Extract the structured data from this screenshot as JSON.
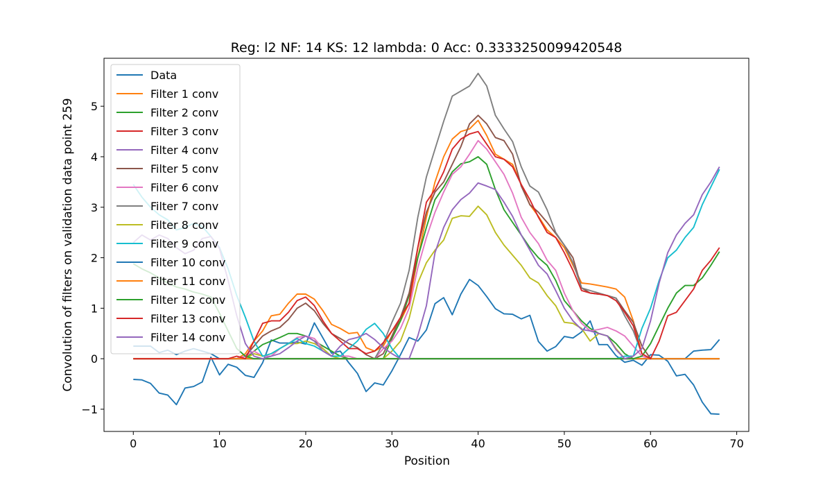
{
  "chart_data": {
    "type": "line",
    "title": "Reg: l2  NF: 14  KS: 12  lambda: 0 Acc: 0.3333250099420548",
    "xlabel": "Position",
    "ylabel": "Convolution of filters on validation data point 259",
    "xlim": [
      -3.4,
      71.4
    ],
    "ylim": [
      -1.44,
      5.95
    ],
    "xticks": [
      0,
      10,
      20,
      30,
      40,
      50,
      60,
      70
    ],
    "yticks": [
      -1,
      0,
      1,
      2,
      3,
      4,
      5
    ],
    "grid": false,
    "legend_position": "top-left",
    "series": [
      {
        "name": "Data",
        "color": "#1f77b4",
        "values": [
          -0.41,
          -0.42,
          -0.49,
          -0.68,
          -0.72,
          -0.91,
          -0.58,
          -0.55,
          -0.46,
          0.03,
          -0.32,
          -0.11,
          -0.17,
          -0.33,
          -0.37,
          -0.08,
          0.37,
          0.31,
          0.31,
          0.33,
          0.29,
          0.71,
          0.41,
          0.11,
          0.15,
          -0.08,
          -0.29,
          -0.65,
          -0.48,
          -0.52,
          -0.24,
          0.08,
          0.42,
          0.35,
          0.57,
          1.09,
          1.21,
          0.87,
          1.28,
          1.57,
          1.45,
          1.23,
          0.99,
          0.89,
          0.88,
          0.79,
          0.86,
          0.34,
          0.15,
          0.24,
          0.44,
          0.41,
          0.53,
          0.75,
          0.28,
          0.28,
          0.06,
          -0.07,
          -0.03,
          -0.13,
          0.08,
          0.07,
          -0.05,
          -0.34,
          -0.31,
          -0.52,
          -0.86,
          -1.09,
          -1.1
        ]
      },
      {
        "name": "Filter 1 conv",
        "color": "#ff7f0e",
        "values": [
          0,
          0,
          0,
          0,
          0,
          0,
          0,
          0,
          0,
          0,
          0,
          0,
          0,
          0.1,
          0.35,
          0.55,
          0.85,
          0.88,
          1.1,
          1.28,
          1.28,
          1.18,
          0.95,
          0.68,
          0.6,
          0.5,
          0.52,
          0.22,
          0.15,
          0.25,
          0.55,
          0.75,
          1.1,
          2.0,
          2.8,
          3.5,
          4.0,
          4.35,
          4.5,
          4.55,
          4.72,
          4.42,
          4.05,
          3.95,
          3.85,
          3.45,
          3.05,
          2.82,
          2.55,
          2.4,
          2.2,
          1.85,
          1.5,
          1.48,
          1.45,
          1.42,
          1.38,
          1.22,
          0.75,
          0.1,
          0,
          0,
          0,
          0,
          0,
          0,
          0,
          0,
          0
        ]
      },
      {
        "name": "Filter 2 conv",
        "color": "#2ca02c",
        "values": [
          0,
          0,
          0,
          0,
          0,
          0,
          0,
          0,
          0,
          0,
          0,
          0,
          0,
          0,
          0.15,
          0.28,
          0.35,
          0.42,
          0.5,
          0.5,
          0.45,
          0.35,
          0.25,
          0.15,
          0.05,
          0.0,
          0.0,
          0.0,
          0.0,
          0.0,
          0.4,
          0.75,
          1.25,
          2.0,
          2.6,
          3.15,
          3.4,
          3.7,
          3.86,
          3.9,
          4.0,
          3.85,
          3.35,
          2.95,
          2.7,
          2.45,
          2.2,
          2.0,
          1.85,
          1.55,
          1.15,
          0.95,
          0.75,
          0.6,
          0.5,
          0.45,
          0.3,
          0.1,
          0.0,
          0.0,
          0.0,
          0,
          0,
          0,
          0,
          0,
          0,
          0,
          0
        ]
      },
      {
        "name": "Filter 3 conv",
        "color": "#d62728",
        "values": [
          0,
          0,
          0,
          0,
          0,
          0,
          0,
          0,
          0,
          0,
          0,
          0,
          0,
          0,
          0,
          0,
          0,
          0,
          0,
          0,
          0,
          0,
          0,
          0,
          0,
          0,
          0,
          0,
          0,
          0,
          0,
          0,
          0,
          0,
          0,
          0,
          0,
          0,
          0,
          0,
          0,
          0,
          0,
          0,
          0,
          0,
          0,
          0,
          0,
          0,
          0,
          0,
          0,
          0,
          0,
          0,
          0,
          0,
          0,
          0,
          0,
          0,
          0,
          0,
          0,
          0,
          0,
          0,
          0
        ]
      },
      {
        "name": "Filter 4 conv",
        "color": "#9467bd",
        "values": [
          0,
          0,
          0,
          0,
          0,
          0,
          0,
          0,
          0,
          0,
          0,
          0,
          0,
          0,
          0,
          0,
          0,
          0,
          0,
          0,
          0,
          0,
          0,
          0,
          0,
          0,
          0,
          0,
          0,
          0,
          0,
          0,
          0,
          0,
          0,
          0,
          0,
          0,
          0,
          0,
          0,
          0,
          0,
          0,
          0,
          0,
          0,
          0,
          0,
          0,
          0,
          0,
          0,
          0,
          0,
          0,
          0,
          0,
          0,
          0,
          0,
          0,
          0,
          0,
          0,
          0,
          0,
          0,
          0
        ]
      },
      {
        "name": "Filter 5 conv",
        "color": "#8c564b",
        "values": [
          0,
          0,
          0,
          0,
          0,
          0,
          0,
          0,
          0,
          0,
          0,
          0,
          0,
          0.05,
          0.25,
          0.45,
          0.55,
          0.62,
          0.78,
          1.0,
          1.1,
          0.95,
          0.7,
          0.5,
          0.4,
          0.3,
          0.22,
          0.08,
          0.0,
          0.1,
          0.45,
          0.82,
          1.3,
          2.2,
          2.9,
          3.3,
          3.5,
          3.85,
          4.2,
          4.65,
          4.82,
          4.65,
          4.38,
          4.32,
          4.05,
          3.42,
          3.05,
          2.9,
          2.7,
          2.48,
          2.25,
          2.0,
          1.4,
          1.3,
          1.28,
          1.25,
          1.2,
          0.95,
          0.72,
          0.25,
          0.0,
          0,
          0,
          0,
          0,
          0,
          0,
          0,
          0
        ]
      },
      {
        "name": "Filter 6 conv",
        "color": "#e377c2",
        "values": [
          0,
          0,
          0,
          0,
          0,
          0,
          0,
          0,
          0,
          0,
          0,
          0,
          0,
          0.05,
          0.15,
          0.05,
          0.05,
          0.2,
          0.3,
          0.42,
          0.45,
          0.4,
          0.2,
          0.05,
          0.05,
          0.05,
          0.0,
          0.0,
          0.0,
          0.2,
          0.35,
          0.6,
          1.0,
          1.8,
          2.4,
          2.9,
          3.3,
          3.65,
          3.8,
          4.05,
          4.32,
          4.15,
          3.9,
          3.65,
          3.28,
          2.8,
          2.5,
          2.28,
          1.95,
          1.75,
          1.3,
          0.95,
          0.7,
          0.55,
          0.58,
          0.62,
          0.55,
          0.45,
          0.25,
          0.05,
          0.0,
          0,
          0,
          0,
          0,
          0,
          0,
          0,
          0
        ]
      },
      {
        "name": "Filter 7 conv",
        "color": "#7f7f7f",
        "values": [
          0,
          0,
          0,
          0,
          0,
          0,
          0,
          0,
          0,
          0,
          0,
          0,
          0,
          0,
          0,
          0,
          0,
          0,
          0,
          0,
          0,
          0,
          0,
          0,
          0,
          0,
          0,
          0,
          0,
          0.3,
          0.72,
          1.1,
          1.75,
          2.8,
          3.6,
          4.15,
          4.7,
          5.2,
          5.3,
          5.4,
          5.65,
          5.4,
          4.82,
          4.55,
          4.3,
          3.8,
          3.42,
          3.3,
          2.95,
          2.5,
          2.25,
          1.9,
          1.4,
          1.35,
          1.3,
          1.25,
          1.2,
          0.85,
          0.55,
          0.1,
          0.0,
          0,
          0,
          0,
          0,
          0,
          0,
          0,
          0
        ]
      },
      {
        "name": "Filter 8 conv",
        "color": "#bcbd22",
        "values": [
          0,
          0,
          0,
          0,
          0,
          0,
          0,
          0,
          0,
          0,
          0,
          0,
          0,
          0,
          0.1,
          0.05,
          0.1,
          0.2,
          0.3,
          0.3,
          0.35,
          0.3,
          0.2,
          0.05,
          0.0,
          0.0,
          0.0,
          0.0,
          0.0,
          0.0,
          0.15,
          0.35,
          0.8,
          1.5,
          1.9,
          2.15,
          2.35,
          2.78,
          2.83,
          2.82,
          3.02,
          2.85,
          2.5,
          2.25,
          2.05,
          1.85,
          1.6,
          1.5,
          1.25,
          1.05,
          0.72,
          0.7,
          0.6,
          0.35,
          0.5,
          0.45,
          0.2,
          0.0,
          0.0,
          0.0,
          0.0,
          0,
          0,
          0,
          0,
          0,
          0,
          0,
          0
        ]
      },
      {
        "name": "Filter 9 conv",
        "color": "#17becf",
        "values": [
          3.45,
          3.2,
          3.0,
          2.85,
          2.75,
          2.55,
          2.6,
          2.68,
          2.62,
          2.42,
          2.2,
          1.78,
          1.25,
          0.82,
          0.35,
          0.05,
          0.1,
          0.2,
          0.3,
          0.4,
          0.3,
          0.25,
          0.15,
          0.05,
          0.05,
          0.2,
          0.35,
          0.58,
          0.7,
          0.5,
          0.2,
          0.0,
          0.0,
          0.0,
          0.0,
          0.0,
          0,
          0,
          0,
          0,
          0,
          0,
          0,
          0,
          0,
          0,
          0,
          0,
          0,
          0,
          0,
          0,
          0,
          0,
          0,
          0,
          0,
          0.05,
          0.05,
          0.6,
          1.0,
          1.55,
          2.0,
          2.15,
          2.4,
          2.6,
          3.05,
          3.4,
          3.75
        ]
      },
      {
        "name": "Filter 10 conv",
        "color": "#1f77b4",
        "values": [
          0.25,
          0.25,
          0.25,
          0.12,
          0.17,
          0.08,
          0.15,
          0.2,
          0.15,
          0.1,
          0.0,
          0,
          0,
          0,
          0,
          0,
          0,
          0,
          0,
          0,
          0,
          0,
          0,
          0,
          0,
          0,
          0,
          0,
          0,
          0,
          0,
          0,
          0,
          0,
          0,
          0,
          0,
          0,
          0,
          0,
          0,
          0,
          0,
          0,
          0,
          0,
          0,
          0,
          0,
          0,
          0,
          0,
          0,
          0,
          0,
          0,
          0,
          0,
          0,
          0,
          0,
          0,
          0,
          0,
          0,
          0.15,
          0.17,
          0.18,
          0.38
        ]
      },
      {
        "name": "Filter 11 conv",
        "color": "#ff7f0e",
        "values": [
          0,
          0,
          0,
          0,
          0,
          0,
          0,
          0,
          0,
          0,
          0,
          0,
          0,
          0,
          0,
          0,
          0,
          0,
          0,
          0,
          0,
          0,
          0,
          0,
          0,
          0,
          0,
          0,
          0,
          0,
          0,
          0,
          0,
          0,
          0,
          0,
          0,
          0,
          0,
          0,
          0,
          0,
          0,
          0,
          0,
          0,
          0,
          0,
          0,
          0,
          0,
          0,
          0,
          0,
          0,
          0,
          0,
          0,
          0,
          0,
          0,
          0,
          0,
          0,
          0,
          0,
          0,
          0,
          0
        ]
      },
      {
        "name": "Filter 12 conv",
        "color": "#2ca02c",
        "values": [
          1.88,
          1.78,
          1.7,
          1.6,
          1.5,
          1.42,
          1.38,
          1.32,
          1.28,
          1.22,
          0.9,
          0.55,
          0.2,
          0.05,
          0,
          0,
          0,
          0,
          0,
          0,
          0,
          0,
          0,
          0,
          0,
          0,
          0,
          0,
          0,
          0,
          0,
          0,
          0,
          0,
          0,
          0,
          0,
          0,
          0,
          0,
          0,
          0,
          0,
          0,
          0,
          0,
          0,
          0,
          0,
          0,
          0,
          0,
          0,
          0,
          0,
          0,
          0,
          0,
          0,
          0.05,
          0.3,
          0.65,
          1.0,
          1.3,
          1.45,
          1.45,
          1.6,
          1.85,
          2.12
        ]
      },
      {
        "name": "Filter 13 conv",
        "color": "#d62728",
        "values": [
          0,
          0,
          0,
          0,
          0,
          0,
          0,
          0,
          0,
          0,
          0,
          0,
          0.05,
          0.0,
          0.35,
          0.7,
          0.75,
          0.75,
          0.92,
          1.15,
          1.22,
          1.05,
          0.75,
          0.5,
          0.35,
          0.2,
          0.2,
          0.1,
          0.15,
          0.32,
          0.55,
          0.82,
          1.1,
          2.2,
          3.1,
          3.35,
          3.7,
          4.15,
          4.35,
          4.45,
          4.5,
          4.25,
          4.0,
          3.95,
          3.8,
          3.45,
          3.15,
          2.8,
          2.5,
          2.4,
          2.1,
          1.75,
          1.35,
          1.3,
          1.28,
          1.25,
          1.15,
          0.92,
          0.65,
          0.1,
          0.0,
          0.35,
          0.85,
          0.92,
          1.15,
          1.38,
          1.75,
          1.95,
          2.2
        ]
      },
      {
        "name": "Filter 14 conv",
        "color": "#9467bd",
        "values": [
          2.3,
          2.45,
          2.35,
          2.45,
          2.38,
          2.2,
          2.08,
          2.15,
          2.38,
          2.42,
          2.18,
          1.55,
          0.85,
          0.3,
          0.05,
          0.0,
          0.05,
          0.1,
          0.22,
          0.35,
          0.45,
          0.35,
          0.15,
          0.05,
          0.25,
          0.38,
          0.42,
          0.5,
          0.38,
          0.22,
          0.1,
          0.0,
          0.0,
          0.45,
          1.05,
          2.1,
          2.6,
          2.95,
          3.15,
          3.28,
          3.48,
          3.42,
          3.35,
          3.1,
          2.82,
          2.45,
          2.15,
          1.85,
          1.68,
          1.35,
          1.0,
          0.75,
          0.58,
          0.55,
          0.5,
          0.45,
          0.18,
          0.0,
          0.05,
          0.2,
          0.75,
          1.5,
          2.1,
          2.45,
          2.68,
          2.85,
          3.25,
          3.5,
          3.8
        ]
      }
    ]
  }
}
